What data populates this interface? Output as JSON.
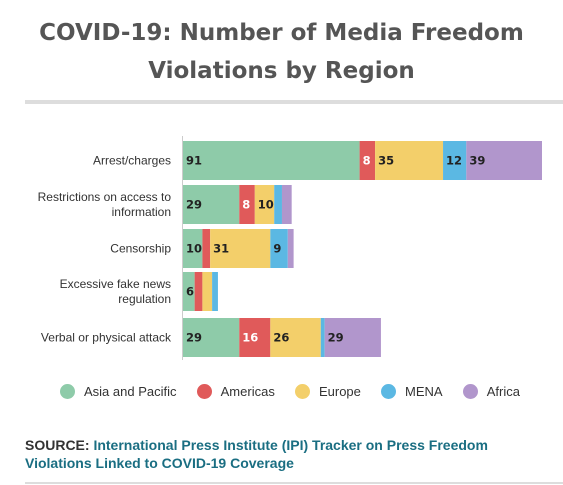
{
  "title": "COVID-19: Number of Media Freedom Violations by Region",
  "source": {
    "prefix": "SOURCE: ",
    "link_text": "International Press Institute (IPI) Tracker on Press Freedom Violations Linked to COVID-19 Coverage"
  },
  "colors": {
    "asia_pacific": "#8ecba9",
    "americas": "#e05a5a",
    "europe": "#f3cf6a",
    "mena": "#5bb8e3",
    "africa": "#b196cc"
  },
  "chart_data": {
    "type": "bar",
    "orientation": "horizontal",
    "stacked": true,
    "legend_position": "bottom",
    "grid": false,
    "categories": [
      [
        "Arrest/charges"
      ],
      [
        "Restrictions on access to",
        "information"
      ],
      [
        "Censorship"
      ],
      [
        "Excessive fake news",
        "regulation"
      ],
      [
        "Verbal or physical attack"
      ]
    ],
    "series": [
      {
        "name": "Asia and Pacific",
        "color": "#8ecba9",
        "values": [
          91,
          29,
          10,
          6,
          29
        ],
        "labels": [
          "91",
          "29",
          "10",
          "6",
          "29"
        ]
      },
      {
        "name": "Americas",
        "color": "#e05a5a",
        "values": [
          8,
          8,
          4,
          4,
          16
        ],
        "labels": [
          "8",
          "8",
          "",
          "",
          "16"
        ]
      },
      {
        "name": "Europe",
        "color": "#f3cf6a",
        "values": [
          35,
          10,
          31,
          5,
          26
        ],
        "labels": [
          "35",
          "10",
          "31",
          "",
          "26"
        ]
      },
      {
        "name": "MENA",
        "color": "#5bb8e3",
        "values": [
          12,
          4,
          9,
          3,
          2
        ],
        "labels": [
          "12",
          "",
          "9",
          "",
          ""
        ]
      },
      {
        "name": "Africa",
        "color": "#b196cc",
        "values": [
          39,
          5,
          3,
          0,
          29
        ],
        "labels": [
          "39",
          "",
          "",
          "",
          "29"
        ]
      }
    ],
    "xlim": [
      0,
      185
    ]
  }
}
